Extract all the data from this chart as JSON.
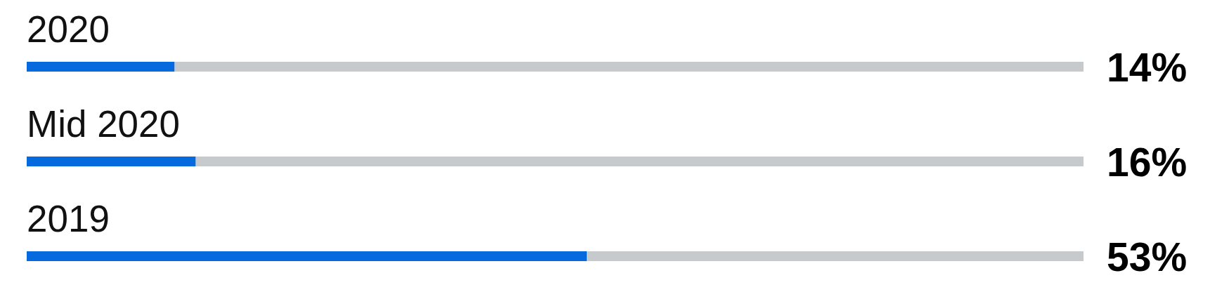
{
  "chart_data": {
    "type": "bar",
    "orientation": "horizontal",
    "stacked": true,
    "categories": [
      "2020",
      "Mid 2020",
      "2019"
    ],
    "series": [
      {
        "color": "#0769de",
        "values": [
          14,
          16,
          53
        ],
        "value_labels": [
          "14%",
          "16%",
          "53%"
        ]
      },
      {
        "color": "#c7cacd",
        "values": [
          86,
          84,
          47
        ]
      }
    ],
    "xlim": [
      0,
      100
    ],
    "tick_labels": "y"
  }
}
